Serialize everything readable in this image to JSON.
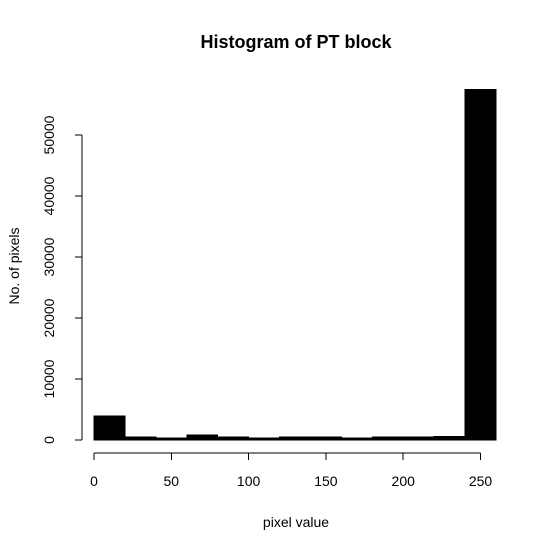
{
  "chart_data": {
    "type": "bar",
    "title": "Histogram of PT block",
    "xlabel": "pixel value",
    "ylabel": "No. of pixels",
    "bins": [
      {
        "start": 0,
        "end": 20,
        "count": 3900
      },
      {
        "start": 20,
        "end": 40,
        "count": 500
      },
      {
        "start": 40,
        "end": 60,
        "count": 300
      },
      {
        "start": 60,
        "end": 80,
        "count": 800
      },
      {
        "start": 80,
        "end": 100,
        "count": 500
      },
      {
        "start": 100,
        "end": 120,
        "count": 300
      },
      {
        "start": 120,
        "end": 140,
        "count": 500
      },
      {
        "start": 140,
        "end": 160,
        "count": 500
      },
      {
        "start": 160,
        "end": 180,
        "count": 300
      },
      {
        "start": 180,
        "end": 200,
        "count": 500
      },
      {
        "start": 200,
        "end": 220,
        "count": 500
      },
      {
        "start": 220,
        "end": 240,
        "count": 600
      },
      {
        "start": 240,
        "end": 260,
        "count": 57500
      }
    ],
    "xticks": [
      0,
      50,
      100,
      150,
      200,
      250
    ],
    "xtick_labels": [
      "0",
      "50",
      "100",
      "150",
      "200",
      "250"
    ],
    "yticks": [
      0,
      10000,
      20000,
      30000,
      40000,
      50000
    ],
    "ytick_labels": [
      "0",
      "10000",
      "20000",
      "30000",
      "40000",
      "50000"
    ],
    "xlim": [
      0,
      260
    ],
    "ylim": [
      0,
      57500
    ],
    "grid": false,
    "legend": "none",
    "bar_color": "#000000"
  }
}
